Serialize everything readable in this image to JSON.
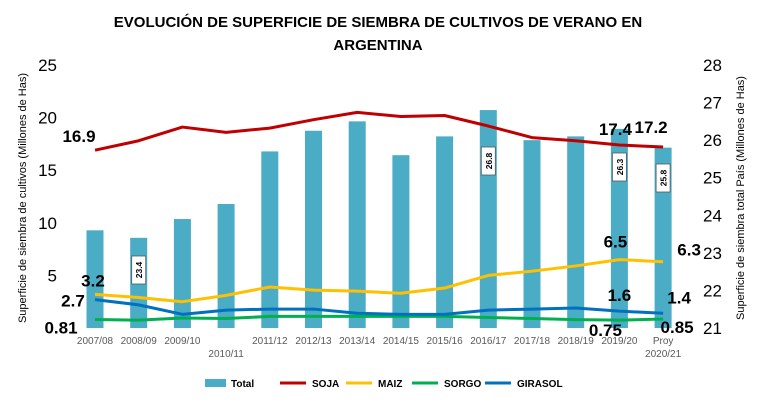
{
  "chart_data": {
    "type": "bar+line",
    "title": "EVOLUCIÓN DE SUPERFICIE DE SIEMBRA DE CULTIVOS DE VERANO EN ARGENTINA",
    "title_lines": [
      "EVOLUCIÓN DE SUPERFICIE DE SIEMBRA DE CULTIVOS DE VERANO EN",
      "ARGENTINA"
    ],
    "ylabel": "Superficie de siembra de cultivos (Millones de Has)",
    "y2label": "Superficie de siembra total País (Millones de Has)",
    "ylim": [
      0,
      25
    ],
    "y2lim": [
      21,
      28
    ],
    "yticks": [
      "0.81",
      "5",
      "10",
      "15",
      "20",
      "25"
    ],
    "yticks_values": [
      5,
      10,
      15,
      20,
      25
    ],
    "y2ticks": [
      21,
      22,
      23,
      24,
      25,
      26,
      27,
      28
    ],
    "grid": false,
    "legend_position": "bottom",
    "categories": [
      "2007/08",
      "2008/09",
      "2009/10",
      "2010/11",
      "2011/12",
      "2012/13",
      "2013/14",
      "2014/15",
      "2015/16",
      "2016/17",
      "2017/18",
      "2018/19",
      "2019/20",
      "Proy 2020/21"
    ],
    "bar_series": {
      "name": "Total",
      "axis": "right",
      "color": "#4BACC6",
      "values": [
        23.6,
        23.4,
        23.9,
        24.3,
        25.7,
        26.25,
        26.5,
        25.6,
        26.1,
        26.8,
        26.0,
        26.1,
        26.3,
        25.8
      ],
      "data_labels": {
        "1": "23.4",
        "9": "26.8",
        "12": "26.3",
        "13": "25.8"
      }
    },
    "series": [
      {
        "name": "SOJA",
        "color": "#C00000",
        "values": [
          16.9,
          17.8,
          19.1,
          18.6,
          19.0,
          19.8,
          20.5,
          20.1,
          20.2,
          19.2,
          18.1,
          17.8,
          17.4,
          17.2
        ],
        "data_labels": {
          "0": "16.9",
          "12": "17.4",
          "13": "17.2"
        }
      },
      {
        "name": "MAIZ",
        "color": "#FFC000",
        "values": [
          3.2,
          2.9,
          2.5,
          3.1,
          3.9,
          3.6,
          3.5,
          3.3,
          3.8,
          5.0,
          5.4,
          5.9,
          6.5,
          6.3
        ],
        "data_labels": {
          "0": "3.2",
          "12": "6.5",
          "13": "6.3"
        }
      },
      {
        "name": "SORGO",
        "color": "#00B050",
        "values": [
          0.81,
          0.75,
          0.95,
          0.9,
          1.1,
          1.1,
          1.1,
          1.1,
          1.1,
          1.0,
          0.9,
          0.8,
          0.75,
          0.85
        ],
        "data_labels": {
          "0": "0.81",
          "12": "0.75",
          "13": "0.85"
        }
      },
      {
        "name": "GIRASOL",
        "color": "#0070C0",
        "values": [
          2.7,
          2.2,
          1.3,
          1.7,
          1.8,
          1.8,
          1.4,
          1.3,
          1.3,
          1.7,
          1.8,
          1.9,
          1.6,
          1.4
        ],
        "data_labels": {
          "0": "2.7",
          "12": "1.6",
          "13": "1.4"
        }
      }
    ]
  }
}
